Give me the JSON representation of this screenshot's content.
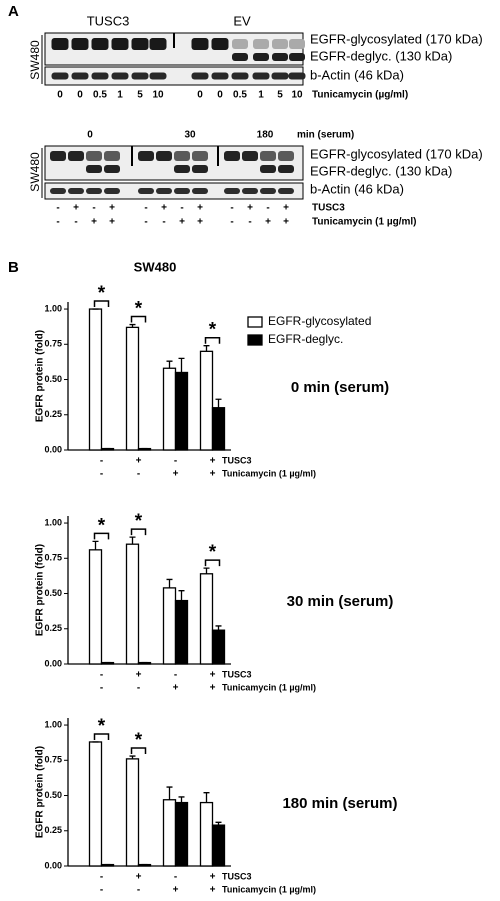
{
  "panel_a": {
    "label": "A",
    "blot1": {
      "groups": [
        "TUSC3",
        "EV"
      ],
      "cell_line": "SW480",
      "bands": [
        "EGFR-glycosylated (170 kDa)",
        "EGFR-deglyc. (130 kDa)",
        "b-Actin (46 kDa)"
      ],
      "lanes": [
        "0",
        "0",
        "0.5",
        "1",
        "5",
        "10",
        "0",
        "0",
        "0.5",
        "1",
        "5",
        "10"
      ],
      "lanes_label": "Tunicamycin (µg/ml)"
    },
    "blot2": {
      "times": [
        "0",
        "30",
        "180"
      ],
      "time_label": "min (serum)",
      "cell_line": "SW480",
      "bands": [
        "EGFR-glycosylated (170 kDa)",
        "EGFR-deglyc. (130 kDa)",
        "b-Actin (46 kDa)"
      ],
      "rows": [
        {
          "name": "TUSC3",
          "labels": [
            "-",
            "+",
            "-",
            "+",
            "-",
            "+",
            "-",
            "+",
            "-",
            "+",
            "-",
            "+"
          ]
        },
        {
          "name": "Tunicamycin (1 µg/ml)",
          "labels": [
            "-",
            "-",
            "+",
            "+",
            "-",
            "-",
            "+",
            "+",
            "-",
            "-",
            "+",
            "+"
          ]
        }
      ]
    }
  },
  "panel_b": {
    "label": "B"
  },
  "chart_data": [
    {
      "type": "bar",
      "title": "SW480",
      "annotation": "0 min (serum)",
      "y_label": "EGFR protein (fold)",
      "categories": [
        null,
        null,
        null,
        null
      ],
      "x_rows": [
        {
          "name": "TUSC3",
          "labels": [
            "-",
            "+",
            "-",
            "+"
          ]
        },
        {
          "name": "Tunicamycin (1 µg/ml)",
          "labels": [
            "-",
            "-",
            "+",
            "+"
          ]
        }
      ],
      "series": [
        {
          "name": "EGFR-glycosylated",
          "color": "#ffffff",
          "values": [
            1.0,
            0.87,
            0.58,
            0.7
          ],
          "errors": [
            0,
            0.02,
            0.05,
            0.04
          ]
        },
        {
          "name": "EGFR-deglyc.",
          "color": "#000000",
          "values": [
            0.01,
            0.01,
            0.55,
            0.3
          ],
          "errors": [
            0,
            0,
            0.1,
            0.06
          ]
        }
      ],
      "significance": [
        "*",
        "*",
        null,
        "*"
      ],
      "ylim": [
        0,
        1.05
      ],
      "yticks": [
        {
          "value": 0,
          "label": "0.00"
        },
        {
          "value": 0.25,
          "label": "0.25"
        },
        {
          "value": 0.5,
          "label": "0.50"
        },
        {
          "value": 0.75,
          "label": "0.75"
        },
        {
          "value": 1,
          "label": "1.00"
        }
      ],
      "legend": true
    },
    {
      "type": "bar",
      "annotation": "30 min (serum)",
      "y_label": "EGFR protein (fold)",
      "categories": [
        null,
        null,
        null,
        null
      ],
      "x_rows": [
        {
          "name": "TUSC3",
          "labels": [
            "-",
            "+",
            "-",
            "+"
          ]
        },
        {
          "name": "Tunicamycin (1 µg/ml)",
          "labels": [
            "-",
            "-",
            "+",
            "+"
          ]
        }
      ],
      "series": [
        {
          "color": "#ffffff",
          "values": [
            0.81,
            0.85,
            0.54,
            0.64
          ],
          "errors": [
            0.06,
            0.05,
            0.06,
            0.04
          ]
        },
        {
          "color": "#000000",
          "values": [
            0.01,
            0.01,
            0.45,
            0.24
          ],
          "errors": [
            0,
            0,
            0.07,
            0.03
          ]
        }
      ],
      "significance": [
        "*",
        "*",
        null,
        "*"
      ],
      "ylim": [
        0,
        1.05
      ],
      "yticks": [
        {
          "value": 0,
          "label": "0.00"
        },
        {
          "value": 0.25,
          "label": "0.25"
        },
        {
          "value": 0.5,
          "label": "0.50"
        },
        {
          "value": 0.75,
          "label": "0.75"
        },
        {
          "value": 1,
          "label": "1.00"
        }
      ],
      "legend": false
    },
    {
      "type": "bar",
      "annotation": "180 min (serum)",
      "y_label": "EGFR protein (fold)",
      "categories": [
        null,
        null,
        null,
        null
      ],
      "x_rows": [
        {
          "name": "TUSC3",
          "labels": [
            "-",
            "+",
            "-",
            "+"
          ]
        },
        {
          "name": "Tunicamycin (1 µg/ml)",
          "labels": [
            "-",
            "-",
            "+",
            "+"
          ]
        }
      ],
      "series": [
        {
          "color": "#ffffff",
          "values": [
            0.88,
            0.76,
            0.47,
            0.45
          ],
          "errors": [
            0,
            0.02,
            0.09,
            0.07
          ]
        },
        {
          "color": "#000000",
          "values": [
            0.01,
            0.01,
            0.45,
            0.29
          ],
          "errors": [
            0,
            0,
            0.04,
            0.02
          ]
        }
      ],
      "significance": [
        "*",
        "*",
        null,
        null
      ],
      "ylim": [
        0,
        1.05
      ],
      "yticks": [
        {
          "value": 0,
          "label": "0.00"
        },
        {
          "value": 0.25,
          "label": "0.25"
        },
        {
          "value": 0.5,
          "label": "0.50"
        },
        {
          "value": 0.75,
          "label": "0.75"
        },
        {
          "value": 1,
          "label": "1.00"
        }
      ],
      "legend": false
    }
  ]
}
